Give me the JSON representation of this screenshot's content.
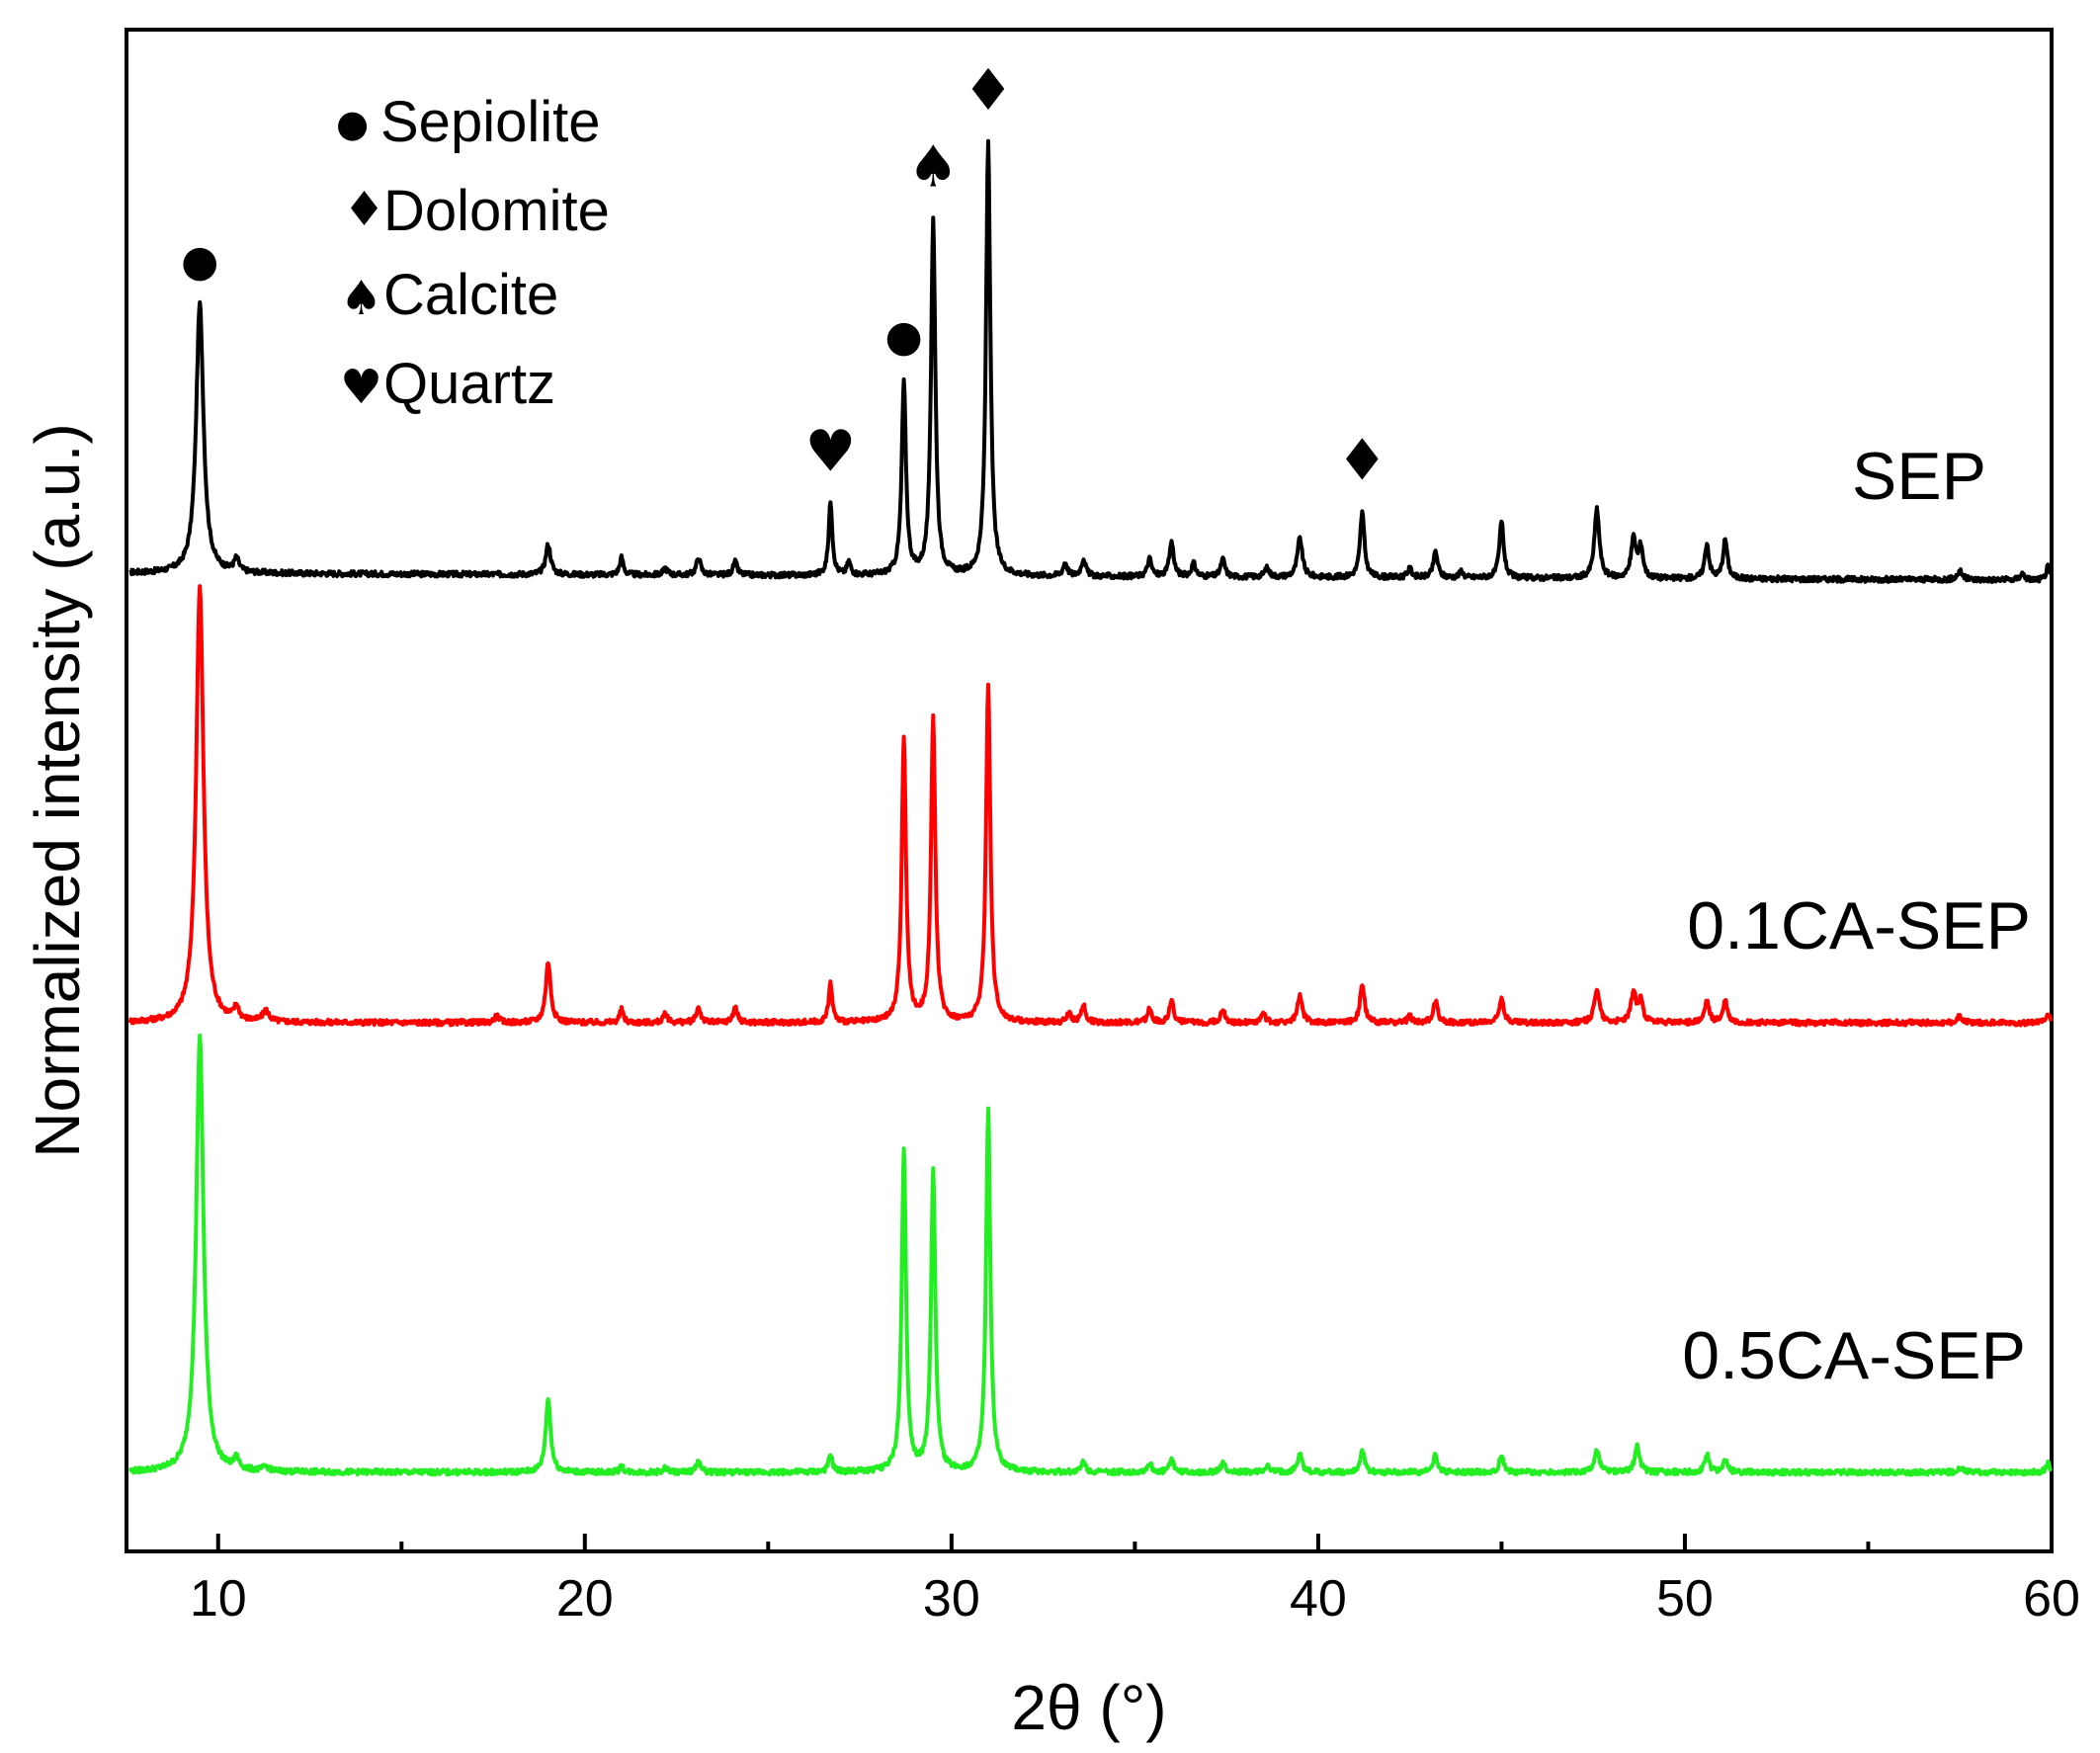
{
  "chart_data": {
    "type": "line",
    "xlabel": "2θ (°)",
    "ylabel": "Normalized intensity (a.u.)",
    "xlim": [
      7.5,
      60
    ],
    "xticks": [
      10,
      20,
      30,
      40,
      50,
      60
    ],
    "grid": false,
    "legend": {
      "placement": "top-left",
      "items": [
        {
          "symbol": "●",
          "label": "Sepiolite"
        },
        {
          "symbol": "♦",
          "label": "Dolomite"
        },
        {
          "symbol": "♠",
          "label": "Calcite"
        },
        {
          "symbol": "♥",
          "label": "Quartz"
        }
      ]
    },
    "annotations": [
      {
        "symbol": "●",
        "x": 9.5,
        "series": "SEP"
      },
      {
        "symbol": "♥",
        "x": 26.7,
        "series": "SEP"
      },
      {
        "symbol": "●",
        "x": 28.7,
        "series": "SEP"
      },
      {
        "symbol": "♠",
        "x": 29.5,
        "series": "SEP"
      },
      {
        "symbol": "♦",
        "x": 31.0,
        "series": "SEP"
      },
      {
        "symbol": "♦",
        "x": 41.2,
        "series": "SEP"
      }
    ],
    "series": [
      {
        "name": "SEP",
        "color": "#000000",
        "baseline": 0.2,
        "peaks": [
          [
            9.5,
            0.62,
            0.12
          ],
          [
            10.5,
            0.03,
            0.08
          ],
          [
            19.0,
            0.07,
            0.08
          ],
          [
            21.0,
            0.04,
            0.06
          ],
          [
            22.2,
            0.015,
            0.07
          ],
          [
            23.1,
            0.04,
            0.07
          ],
          [
            24.1,
            0.03,
            0.07
          ],
          [
            26.7,
            0.17,
            0.06
          ],
          [
            27.2,
            0.03,
            0.06
          ],
          [
            28.7,
            0.44,
            0.07
          ],
          [
            29.5,
            0.82,
            0.07
          ],
          [
            31.0,
            1.0,
            0.07
          ],
          [
            33.1,
            0.03,
            0.07
          ],
          [
            33.6,
            0.04,
            0.07
          ],
          [
            35.4,
            0.04,
            0.07
          ],
          [
            36.0,
            0.08,
            0.07
          ],
          [
            36.6,
            0.03,
            0.07
          ],
          [
            37.4,
            0.04,
            0.07
          ],
          [
            38.6,
            0.02,
            0.08
          ],
          [
            39.5,
            0.09,
            0.08
          ],
          [
            41.2,
            0.15,
            0.07
          ],
          [
            42.5,
            0.02,
            0.07
          ],
          [
            43.2,
            0.06,
            0.07
          ],
          [
            43.9,
            0.015,
            0.06
          ],
          [
            45.0,
            0.13,
            0.07
          ],
          [
            47.6,
            0.16,
            0.08
          ],
          [
            48.6,
            0.09,
            0.08
          ],
          [
            48.8,
            0.07,
            0.07
          ],
          [
            50.6,
            0.08,
            0.07
          ],
          [
            51.1,
            0.09,
            0.07
          ],
          [
            57.5,
            0.02,
            0.08
          ],
          [
            59.2,
            0.015,
            0.07
          ],
          [
            59.9,
            0.03,
            0.06
          ]
        ]
      },
      {
        "name": "0.1CA-SEP",
        "color": "#ff0000",
        "baseline": 0.2,
        "peaks": [
          [
            9.5,
            1.0,
            0.12
          ],
          [
            10.5,
            0.03,
            0.08
          ],
          [
            11.3,
            0.025,
            0.1
          ],
          [
            17.6,
            0.015,
            0.08
          ],
          [
            19.0,
            0.14,
            0.08
          ],
          [
            21.0,
            0.03,
            0.06
          ],
          [
            22.2,
            0.02,
            0.07
          ],
          [
            23.1,
            0.035,
            0.07
          ],
          [
            24.1,
            0.035,
            0.07
          ],
          [
            26.7,
            0.09,
            0.06
          ],
          [
            28.7,
            0.65,
            0.07
          ],
          [
            29.5,
            0.7,
            0.07
          ],
          [
            31.0,
            0.78,
            0.07
          ],
          [
            33.2,
            0.02,
            0.07
          ],
          [
            33.6,
            0.04,
            0.07
          ],
          [
            35.4,
            0.03,
            0.07
          ],
          [
            36.0,
            0.05,
            0.07
          ],
          [
            37.4,
            0.03,
            0.07
          ],
          [
            38.5,
            0.02,
            0.07
          ],
          [
            39.5,
            0.06,
            0.08
          ],
          [
            41.2,
            0.09,
            0.07
          ],
          [
            42.5,
            0.015,
            0.07
          ],
          [
            43.2,
            0.05,
            0.07
          ],
          [
            45.0,
            0.06,
            0.07
          ],
          [
            47.6,
            0.08,
            0.08
          ],
          [
            48.6,
            0.07,
            0.08
          ],
          [
            48.8,
            0.05,
            0.07
          ],
          [
            50.6,
            0.05,
            0.07
          ],
          [
            51.1,
            0.05,
            0.07
          ],
          [
            57.5,
            0.015,
            0.08
          ],
          [
            59.9,
            0.02,
            0.06
          ]
        ]
      },
      {
        "name": "0.5CA-SEP",
        "color": "#22ee22",
        "baseline": 0.2,
        "peaks": [
          [
            9.5,
            1.0,
            0.12
          ],
          [
            10.5,
            0.025,
            0.08
          ],
          [
            11.3,
            0.01,
            0.1
          ],
          [
            19.0,
            0.17,
            0.08
          ],
          [
            21.0,
            0.015,
            0.06
          ],
          [
            22.2,
            0.01,
            0.07
          ],
          [
            23.1,
            0.025,
            0.07
          ],
          [
            26.7,
            0.04,
            0.06
          ],
          [
            28.7,
            0.74,
            0.07
          ],
          [
            29.5,
            0.69,
            0.07
          ],
          [
            31.0,
            0.83,
            0.07
          ],
          [
            33.6,
            0.025,
            0.07
          ],
          [
            35.4,
            0.02,
            0.07
          ],
          [
            36.0,
            0.03,
            0.07
          ],
          [
            37.4,
            0.02,
            0.07
          ],
          [
            38.6,
            0.015,
            0.07
          ],
          [
            39.5,
            0.04,
            0.08
          ],
          [
            41.2,
            0.05,
            0.07
          ],
          [
            43.2,
            0.04,
            0.07
          ],
          [
            45.0,
            0.04,
            0.07
          ],
          [
            47.6,
            0.05,
            0.08
          ],
          [
            48.7,
            0.06,
            0.08
          ],
          [
            50.6,
            0.04,
            0.07
          ],
          [
            51.1,
            0.03,
            0.07
          ],
          [
            57.5,
            0.01,
            0.08
          ],
          [
            59.9,
            0.02,
            0.06
          ]
        ]
      }
    ]
  }
}
